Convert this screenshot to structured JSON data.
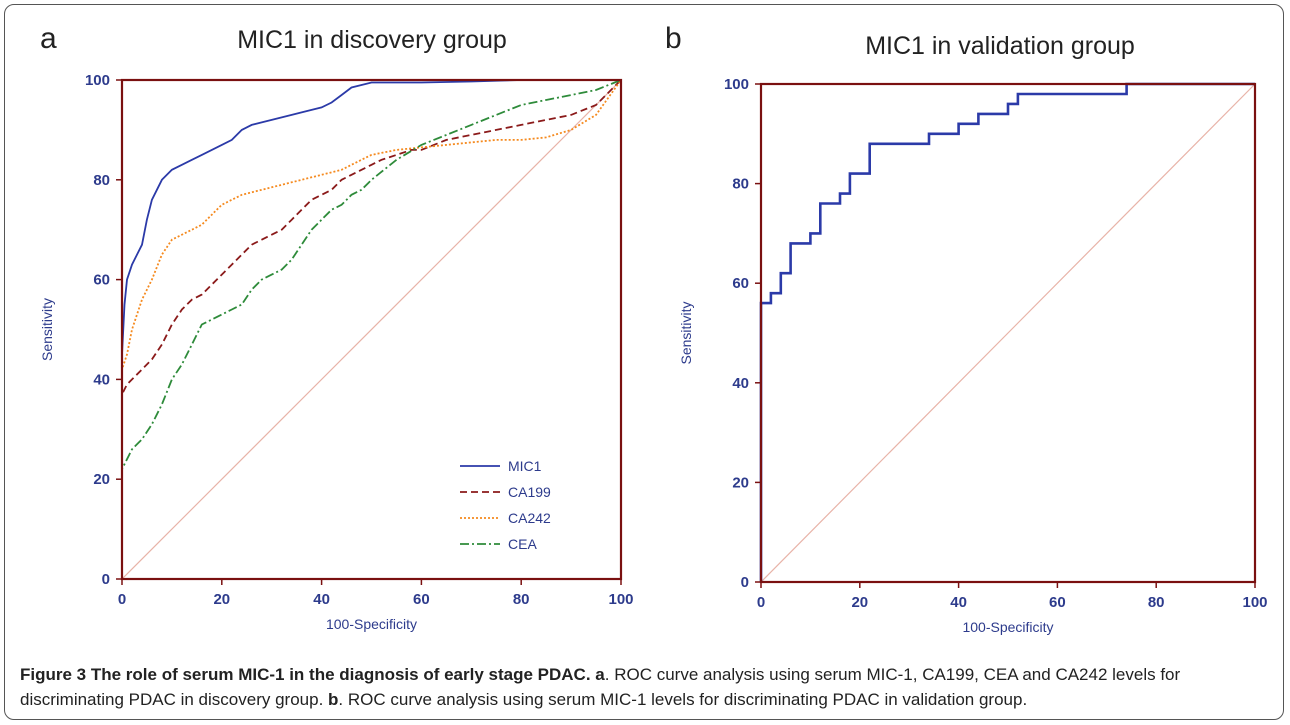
{
  "chart_data": [
    {
      "type": "line",
      "panel_letter": "a",
      "title": "MIC1 in discovery group",
      "xlabel": "100-Specificity",
      "ylabel": "Sensitivity",
      "xlim": [
        0,
        100
      ],
      "ylim": [
        0,
        100
      ],
      "xticks": [
        "0",
        "20",
        "40",
        "60",
        "80",
        "100"
      ],
      "yticks": [
        "0",
        "20",
        "40",
        "60",
        "80",
        "100"
      ],
      "grid": false,
      "legend_position": "bottom-right",
      "reference_line": {
        "x": [
          0,
          100
        ],
        "y": [
          0,
          100
        ],
        "color": "#e8b3a8"
      },
      "series": [
        {
          "name": "MIC1",
          "color": "#2b3aa8",
          "dash": "solid",
          "x": [
            0,
            0,
            0.5,
            1,
            2,
            3,
            4,
            5,
            6,
            7,
            8,
            10,
            12,
            14,
            16,
            18,
            20,
            22,
            24,
            26,
            28,
            30,
            32,
            34,
            36,
            38,
            40,
            42,
            44,
            46,
            48,
            50,
            60,
            70,
            80,
            90,
            100
          ],
          "y": [
            0,
            45,
            55,
            60,
            63,
            65,
            67,
            72,
            76,
            78,
            80,
            82,
            83,
            84,
            85,
            86,
            87,
            88,
            90,
            91,
            91.5,
            92,
            92.5,
            93,
            93.5,
            94,
            94.5,
            95.5,
            97,
            98.5,
            99,
            99.5,
            99.5,
            99.7,
            100,
            100,
            100
          ]
        },
        {
          "name": "CA199",
          "color": "#8b1a1a",
          "dash": "dashed",
          "x": [
            0,
            0,
            1,
            2,
            4,
            6,
            8,
            10,
            12,
            14,
            16,
            18,
            20,
            22,
            24,
            26,
            28,
            30,
            32,
            34,
            36,
            38,
            40,
            42,
            44,
            46,
            48,
            50,
            52,
            55,
            58,
            60,
            65,
            70,
            75,
            80,
            85,
            90,
            95,
            100
          ],
          "y": [
            0,
            37,
            39,
            40,
            42,
            44,
            47,
            51,
            54,
            56,
            57,
            59,
            61,
            63,
            65,
            67,
            68,
            69,
            70,
            72,
            74,
            76,
            77,
            78,
            80,
            81,
            82,
            83,
            84,
            85,
            86,
            86,
            88,
            89,
            90,
            91,
            92,
            93,
            95,
            100
          ]
        },
        {
          "name": "CA242",
          "color": "#f58a1f",
          "dash": "dotted",
          "x": [
            0,
            0,
            1,
            2,
            3,
            4,
            6,
            8,
            10,
            12,
            14,
            16,
            18,
            20,
            22,
            24,
            26,
            28,
            30,
            32,
            34,
            36,
            38,
            40,
            42,
            44,
            46,
            48,
            50,
            55,
            60,
            65,
            70,
            75,
            80,
            85,
            90,
            95,
            100
          ],
          "y": [
            0,
            42,
            45,
            50,
            53,
            56,
            60,
            65,
            68,
            69,
            70,
            71,
            73,
            75,
            76,
            77,
            77.5,
            78,
            78.5,
            79,
            79.5,
            80,
            80.5,
            81,
            81.5,
            82,
            83,
            84,
            85,
            86,
            86.5,
            87,
            87.5,
            88,
            88,
            88.5,
            90,
            93,
            100
          ]
        },
        {
          "name": "CEA",
          "color": "#2e8b3a",
          "dash": "dashdot",
          "x": [
            0,
            0,
            1,
            2,
            3,
            4,
            6,
            8,
            10,
            12,
            14,
            16,
            18,
            20,
            22,
            24,
            26,
            28,
            30,
            32,
            34,
            36,
            38,
            40,
            42,
            44,
            46,
            48,
            50,
            55,
            60,
            65,
            70,
            75,
            80,
            85,
            90,
            95,
            100
          ],
          "y": [
            0,
            22,
            24,
            26,
            27,
            28,
            31,
            35,
            40,
            43,
            47,
            51,
            52,
            53,
            54,
            55,
            58,
            60,
            61,
            62,
            64,
            67,
            70,
            72,
            74,
            75,
            77,
            78,
            80,
            84,
            87,
            89,
            91,
            93,
            95,
            96,
            97,
            98,
            100
          ]
        }
      ]
    },
    {
      "type": "line",
      "panel_letter": "b",
      "title": "MIC1 in validation group",
      "xlabel": "100-Specificity",
      "ylabel": "Sensitivity",
      "xlim": [
        0,
        100
      ],
      "ylim": [
        0,
        100
      ],
      "xticks": [
        "0",
        "20",
        "40",
        "60",
        "80",
        "100"
      ],
      "yticks": [
        "0",
        "20",
        "40",
        "60",
        "80",
        "100"
      ],
      "grid": false,
      "reference_line": {
        "x": [
          0,
          100
        ],
        "y": [
          0,
          100
        ],
        "color": "#e8b3a8"
      },
      "series": [
        {
          "name": "MIC1",
          "color": "#2b3aa8",
          "dash": "solid",
          "step": true,
          "x": [
            0,
            0,
            2,
            2,
            4,
            4,
            6,
            6,
            10,
            10,
            12,
            12,
            16,
            16,
            18,
            18,
            20,
            20,
            22,
            22,
            34,
            34,
            40,
            40,
            44,
            44,
            50,
            50,
            52,
            52,
            74,
            74,
            100
          ],
          "y": [
            0,
            56,
            56,
            58,
            58,
            62,
            62,
            68,
            68,
            70,
            70,
            76,
            76,
            78,
            78,
            82,
            82,
            82,
            82,
            88,
            88,
            90,
            90,
            92,
            92,
            94,
            94,
            96,
            96,
            98,
            98,
            100,
            100
          ]
        }
      ]
    }
  ],
  "caption": {
    "bold_title": "Figure 3 The role of serum MIC-1 in the diagnosis of early stage PDAC.",
    "label_a": "a",
    "text_a": ". ROC curve analysis using serum MIC-1, CA199, CEA and CA242 levels for discriminating PDAC in discovery group.",
    "label_b": "b",
    "text_b": ". ROC curve analysis using serum MIC-1 levels for discriminating PDAC in validation group."
  }
}
